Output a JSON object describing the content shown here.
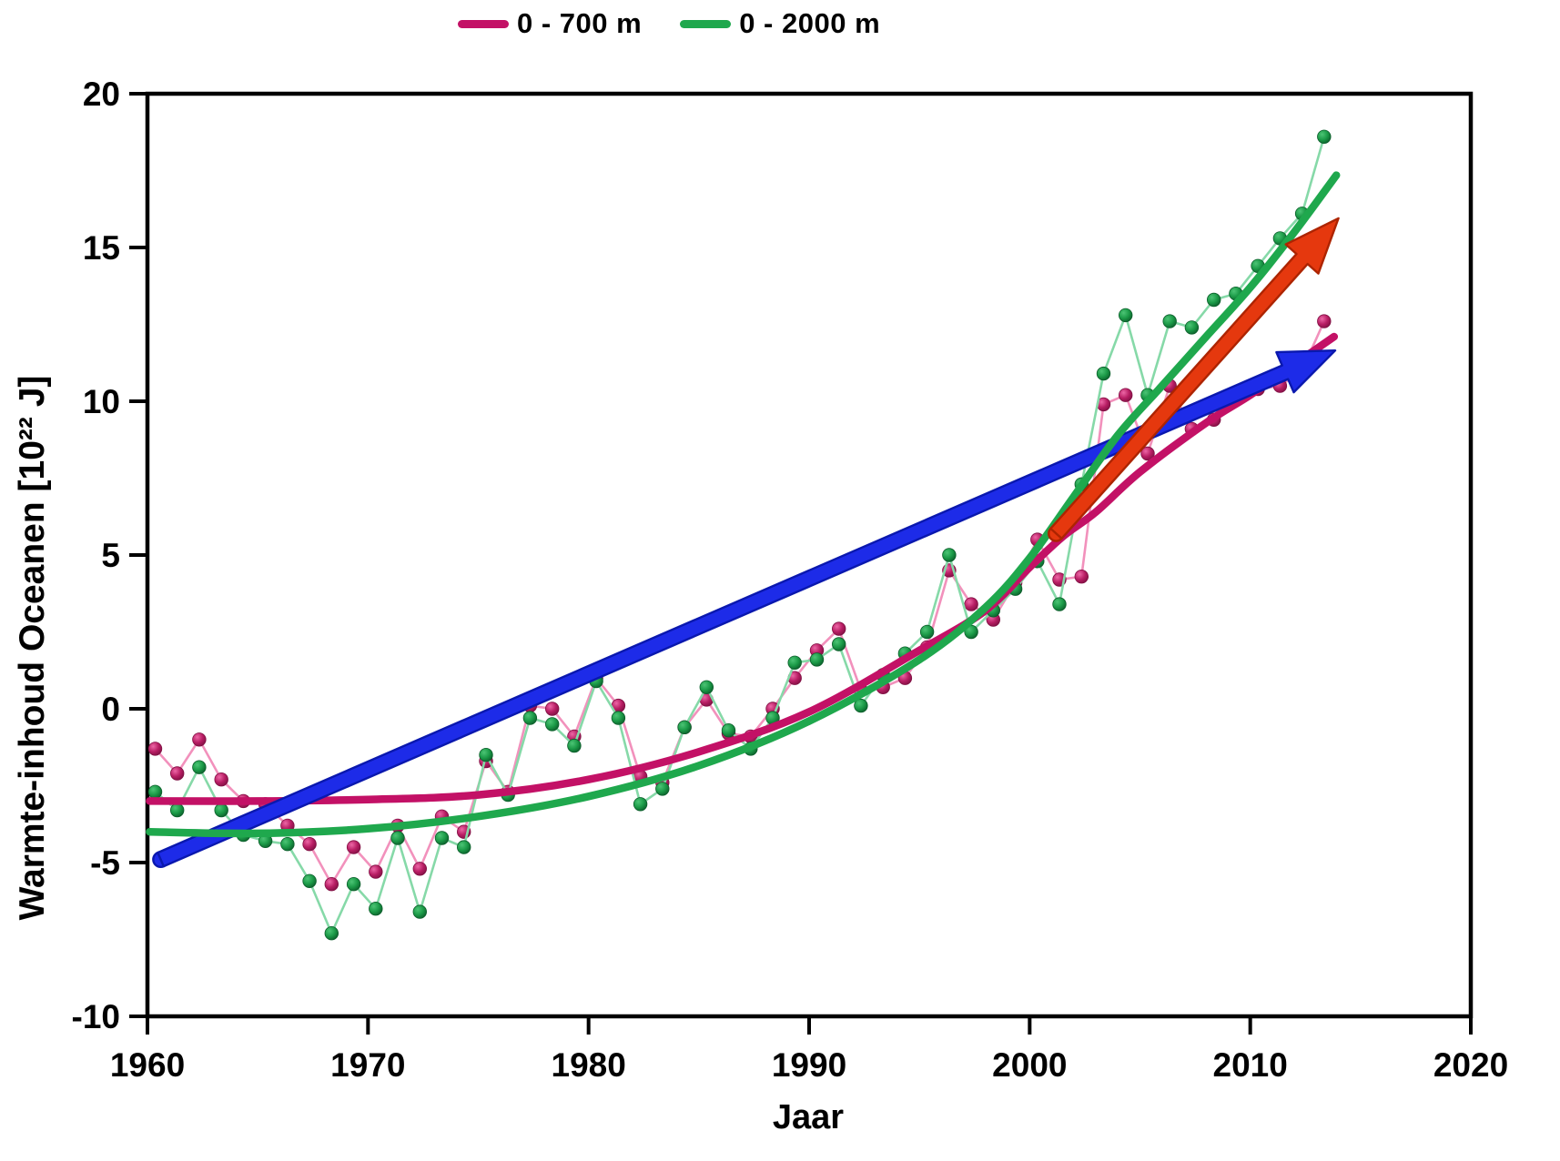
{
  "legend": {
    "series": [
      {
        "label": "0 - 700 m",
        "color": "#C31166"
      },
      {
        "label": "0 - 2000 m",
        "color": "#1FA84D"
      }
    ]
  },
  "axes": {
    "x_label": "Jaar",
    "y_label": "Warmte-inhoud Oceanen [10²² J]",
    "x_ticks": [
      1960,
      1970,
      1980,
      1990,
      2000,
      2010,
      2020
    ],
    "y_ticks": [
      20,
      15,
      10,
      5,
      0,
      -5,
      -10
    ]
  },
  "chart_data": {
    "type": "line",
    "title": "",
    "xlabel": "Jaar",
    "ylabel": "Warmte-inhoud Oceanen [10²² J]",
    "xlim": [
      1960,
      2020
    ],
    "ylim": [
      -10,
      20
    ],
    "grid": false,
    "legend_position": "top-center",
    "x": [
      1960,
      1961,
      1962,
      1963,
      1964,
      1965,
      1966,
      1967,
      1968,
      1969,
      1970,
      1971,
      1972,
      1973,
      1974,
      1975,
      1976,
      1977,
      1978,
      1979,
      1980,
      1981,
      1982,
      1983,
      1984,
      1985,
      1986,
      1987,
      1988,
      1989,
      1990,
      1991,
      1992,
      1993,
      1994,
      1995,
      1996,
      1997,
      1998,
      1999,
      2000,
      2001,
      2002,
      2003,
      2004,
      2005,
      2006,
      2007,
      2008,
      2009,
      2010,
      2011,
      2012,
      2013
    ],
    "series": [
      {
        "name": "0 - 700 m",
        "line_color": "#F291BC",
        "marker_colors": {
          "light": "#ED67A6",
          "mid": "#B81E64",
          "dark": "#801043"
        },
        "values": [
          -1.3,
          -2.1,
          -1.0,
          -2.3,
          -3.0,
          -3.1,
          -3.8,
          -4.4,
          -5.7,
          -4.5,
          -5.3,
          -3.8,
          -5.2,
          -3.5,
          -4.0,
          -1.7,
          -2.7,
          0.1,
          0.0,
          -0.9,
          1.0,
          0.1,
          -2.2,
          -2.4,
          -0.6,
          0.3,
          -0.8,
          -0.9,
          0.0,
          1.0,
          1.9,
          2.6,
          0.6,
          0.7,
          1.0,
          2.0,
          4.5,
          3.4,
          2.9,
          4.1,
          5.5,
          4.2,
          4.3,
          9.9,
          10.2,
          8.3,
          10.5,
          9.1,
          9.4,
          10.1,
          10.4,
          10.5,
          11.0,
          12.6
        ]
      },
      {
        "name": "0 - 2000 m",
        "line_color": "#86D9A8",
        "marker_colors": {
          "light": "#4CC475",
          "mid": "#1B9A47",
          "dark": "#0C5E2B"
        },
        "values": [
          -2.7,
          -3.3,
          -1.9,
          -3.3,
          -4.1,
          -4.3,
          -4.4,
          -5.6,
          -7.3,
          -5.7,
          -6.5,
          -4.2,
          -6.6,
          -4.2,
          -4.5,
          -1.5,
          -2.8,
          -0.3,
          -0.5,
          -1.2,
          0.9,
          -0.3,
          -3.1,
          -2.6,
          -0.6,
          0.7,
          -0.7,
          -1.3,
          -0.3,
          1.5,
          1.6,
          2.1,
          0.1,
          1.1,
          1.8,
          2.5,
          5.0,
          2.5,
          3.2,
          3.9,
          4.8,
          3.4,
          7.3,
          10.9,
          12.8,
          10.2,
          12.6,
          12.4,
          13.3,
          13.5,
          14.4,
          15.3,
          16.1,
          18.6
        ]
      }
    ],
    "trend_lines": [
      {
        "name": "0 - 700 m trend",
        "color": "#C31166",
        "points": [
          [
            1960.1,
            -3.0
          ],
          [
            1965,
            -3.0
          ],
          [
            1970,
            -2.95
          ],
          [
            1975,
            -2.8
          ],
          [
            1980,
            -2.3
          ],
          [
            1985,
            -1.4
          ],
          [
            1990,
            -0.1
          ],
          [
            1995,
            1.9
          ],
          [
            1998,
            3.2
          ],
          [
            2000,
            4.6
          ],
          [
            2001.5,
            5.6
          ],
          [
            2003,
            6.4
          ],
          [
            2005,
            7.7
          ],
          [
            2008,
            9.3
          ],
          [
            2010,
            10.2
          ],
          [
            2012,
            11.2
          ],
          [
            2013.8,
            12.1
          ]
        ]
      },
      {
        "name": "0 - 2000 m trend",
        "color": "#1FA84D",
        "points": [
          [
            1960.1,
            -4.0
          ],
          [
            1965,
            -4.05
          ],
          [
            1970,
            -3.9
          ],
          [
            1975,
            -3.5
          ],
          [
            1980,
            -2.85
          ],
          [
            1985,
            -1.85
          ],
          [
            1990,
            -0.4
          ],
          [
            1995,
            1.6
          ],
          [
            1998,
            3.3
          ],
          [
            2000,
            4.9
          ],
          [
            2002,
            6.9
          ],
          [
            2004,
            8.9
          ],
          [
            2006,
            10.5
          ],
          [
            2008,
            12.1
          ],
          [
            2010,
            13.7
          ],
          [
            2012,
            15.5
          ],
          [
            2013.9,
            17.35
          ]
        ]
      }
    ],
    "arrows": [
      {
        "name": "long-term-trend-arrow",
        "fill": "#1D2BE8",
        "edge": "#0A18AE",
        "from": [
          1960.6,
          -4.9
        ],
        "to": [
          2013.85,
          11.65
        ]
      },
      {
        "name": "recent-trend-arrow",
        "fill": "#E5380E",
        "edge": "#AD2400",
        "from": [
          2001.2,
          5.7
        ],
        "to": [
          2014.0,
          15.95
        ]
      }
    ]
  }
}
